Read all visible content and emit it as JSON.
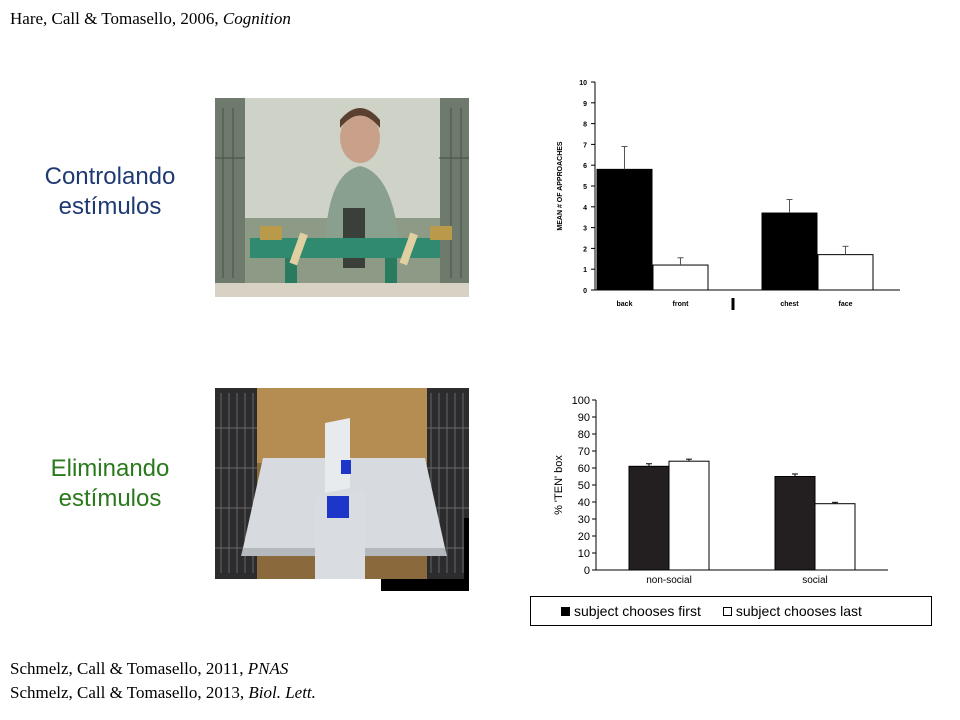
{
  "top_reference": {
    "text": "Hare, Call & Tomasello, 2006, ",
    "journal": "Cognition"
  },
  "heading_top": {
    "line1": "Controlando",
    "line2": "estímulos"
  },
  "heading_bottom": {
    "line1": "Eliminando",
    "line2": "estímulos"
  },
  "bottom_references": [
    {
      "text": "Schmelz, Call & Tomasello, 2011, ",
      "journal": "PNAS"
    },
    {
      "text": "Schmelz, Call & Tomasello, 2013, ",
      "journal": "Biol. Lett."
    }
  ],
  "colors": {
    "heading_top": "#1f3a73",
    "heading_bottom": "#2a7a1c"
  },
  "chart_data": [
    {
      "type": "bar",
      "ylabel": "MEAN # OF APPROACHES",
      "ylim": [
        0,
        10
      ],
      "yticks": [
        "0",
        "1",
        "2",
        "3",
        "4",
        "5",
        "6",
        "7",
        "8",
        "9",
        "10"
      ],
      "categories": [
        "back",
        "front",
        "chest",
        "face"
      ],
      "values": [
        5.8,
        1.2,
        3.7,
        1.7
      ],
      "errors": [
        1.1,
        0.35,
        0.65,
        0.4
      ],
      "bar_colors": [
        "#000000",
        "#ffffff",
        "#000000",
        "#ffffff"
      ],
      "grid": false
    },
    {
      "type": "bar",
      "ylabel": "% 'TEN' box",
      "ylim": [
        0,
        100
      ],
      "yticks": [
        "0",
        "10",
        "20",
        "30",
        "40",
        "50",
        "60",
        "70",
        "80",
        "90",
        "100"
      ],
      "categories": [
        "non-social",
        "social"
      ],
      "series": [
        {
          "name": "subject chooses first",
          "values": [
            61,
            55
          ],
          "errors": [
            1.5,
            1.5
          ],
          "color": "#231f20"
        },
        {
          "name": "subject chooses last",
          "values": [
            64,
            39
          ],
          "errors": [
            1.2,
            0.8
          ],
          "color": "#ffffff"
        }
      ],
      "legend": "bottom",
      "grid": false
    }
  ]
}
